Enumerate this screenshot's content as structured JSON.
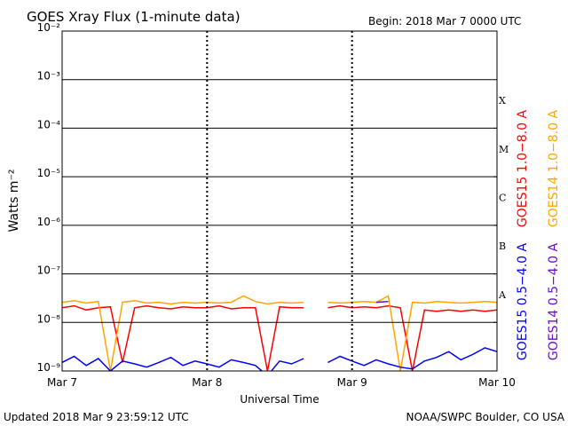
{
  "chart_data": {
    "type": "line",
    "title": "GOES Xray Flux (1-minute data)",
    "subtitle": "Begin:  2018 Mar 7 0000 UTC",
    "y_label": "Watts m⁻²",
    "x_label": "Universal Time",
    "footer_left": "Updated 2018 Mar  9 23:59:12 UTC",
    "footer_right": "NOAA/SWPC Boulder, CO USA",
    "log_y": true,
    "grid": true,
    "x": [
      0,
      2,
      4,
      6,
      8,
      10,
      12,
      14,
      16,
      18,
      20,
      22,
      24,
      26,
      28,
      30,
      32,
      34,
      36,
      38,
      40,
      42,
      44,
      46,
      48,
      50,
      52,
      54,
      56,
      58,
      60,
      62,
      64,
      66,
      68,
      70,
      72
    ],
    "xlim": [
      0,
      72
    ],
    "xticks": [
      {
        "value": 0,
        "label": "Mar 7"
      },
      {
        "value": 24,
        "label": "Mar 8"
      },
      {
        "value": 48,
        "label": "Mar 9"
      },
      {
        "value": 72,
        "label": "Mar 10"
      }
    ],
    "ylim": [
      1e-09,
      0.01
    ],
    "yticks": [
      {
        "value": 1e-09,
        "label": "10⁻⁹"
      },
      {
        "value": 1e-08,
        "label": "10⁻⁸"
      },
      {
        "value": 1e-07,
        "label": "10⁻⁷"
      },
      {
        "value": 1e-06,
        "label": "10⁻⁶"
      },
      {
        "value": 1e-05,
        "label": "10⁻⁵"
      },
      {
        "value": 0.0001,
        "label": "10⁻⁴"
      },
      {
        "value": 0.001,
        "label": "10⁻³"
      },
      {
        "value": 0.01,
        "label": "10⁻²"
      }
    ],
    "flare_classes": [
      {
        "value": 1e-08,
        "label": "A"
      },
      {
        "value": 1e-07,
        "label": "B"
      },
      {
        "value": 1e-06,
        "label": "C"
      },
      {
        "value": 1e-05,
        "label": "M"
      },
      {
        "value": 0.0001,
        "label": "X"
      }
    ],
    "series": [
      {
        "name": "GOES15 1.0−8.0 A",
        "color": "#ff0000",
        "values": [
          2e-08,
          2.2e-08,
          1.8e-08,
          2e-08,
          2.1e-08,
          1.5e-09,
          2e-08,
          2.2e-08,
          2e-08,
          1.9e-08,
          2.1e-08,
          2e-08,
          2e-08,
          2.2e-08,
          1.9e-08,
          2e-08,
          2e-08,
          1e-09,
          2.1e-08,
          2e-08,
          2e-08,
          null,
          2e-08,
          2.2e-08,
          2e-08,
          2.1e-08,
          2e-08,
          2.2e-08,
          2e-08,
          1e-09,
          1.8e-08,
          1.7e-08,
          1.8e-08,
          1.7e-08,
          1.8e-08,
          1.7e-08,
          1.8e-08
        ]
      },
      {
        "name": "GOES14 1.0−8.0 A",
        "color": "#ffa500",
        "values": [
          2.6e-08,
          2.8e-08,
          2.5e-08,
          2.7e-08,
          1e-09,
          2.6e-08,
          2.8e-08,
          2.5e-08,
          2.6e-08,
          2.4e-08,
          2.6e-08,
          2.5e-08,
          2.6e-08,
          2.5e-08,
          2.6e-08,
          3.5e-08,
          2.7e-08,
          2.4e-08,
          2.6e-08,
          2.5e-08,
          2.6e-08,
          null,
          2.6e-08,
          2.5e-08,
          2.6e-08,
          2.7e-08,
          2.6e-08,
          3.5e-08,
          1e-09,
          2.6e-08,
          2.5e-08,
          2.7e-08,
          2.6e-08,
          2.5e-08,
          2.6e-08,
          2.7e-08,
          2.6e-08
        ]
      },
      {
        "name": "GOES15 0.5−4.0 A",
        "color": "#0000ff",
        "values": [
          1.5e-09,
          2e-09,
          1.3e-09,
          1.8e-09,
          1e-09,
          1.6e-09,
          1.4e-09,
          1.2e-09,
          1.5e-09,
          1.9e-09,
          1.3e-09,
          1.6e-09,
          1.4e-09,
          1.2e-09,
          1.7e-09,
          1.5e-09,
          1.3e-09,
          8e-10,
          1.6e-09,
          1.4e-09,
          1.8e-09,
          null,
          1.5e-09,
          2e-09,
          1.6e-09,
          1.3e-09,
          1.7e-09,
          1.4e-09,
          1.2e-09,
          1.1e-09,
          1.6e-09,
          1.9e-09,
          2.5e-09,
          1.7e-09,
          2.2e-09,
          3e-09,
          2.5e-09
        ]
      },
      {
        "name": "GOES14 0.5−4.0 A",
        "color": "#6a0dcd",
        "values": [
          null,
          null,
          null,
          null,
          null,
          null,
          null,
          null,
          null,
          null,
          null,
          null,
          null,
          null,
          null,
          null,
          null,
          null,
          null,
          null,
          null,
          null,
          null,
          null,
          null,
          null,
          2.6e-08,
          2.7e-08,
          null,
          null,
          null,
          null,
          null,
          null,
          null,
          null,
          null
        ]
      }
    ]
  }
}
